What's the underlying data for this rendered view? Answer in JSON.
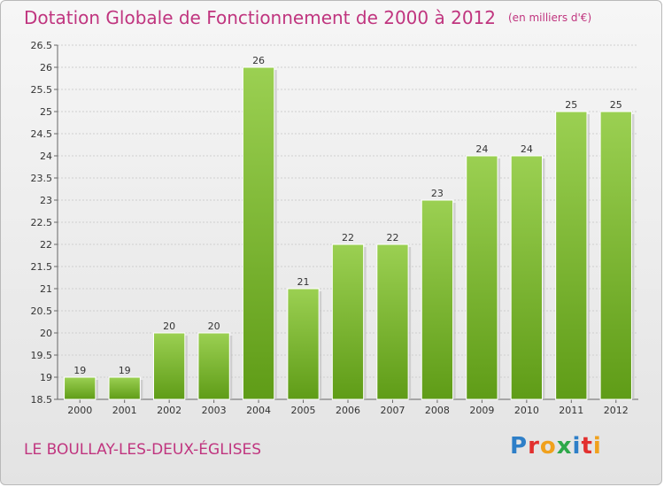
{
  "title": "Dotation Globale de Fonctionnement de 2000 à 2012",
  "unit": "(en milliers d'€)",
  "commune": "LE BOULLAY-LES-DEUX-ÉGLISES",
  "logo": {
    "letters": [
      "P",
      "r",
      "o",
      "x",
      "i",
      "t",
      "i"
    ],
    "colors": [
      "#2e7fc8",
      "#e2302f",
      "#f0a11d",
      "#2ea84a",
      "#2e7fc8",
      "#e2302f",
      "#f0a11d"
    ]
  },
  "chart_data": {
    "type": "bar",
    "categories": [
      "2000",
      "2001",
      "2002",
      "2003",
      "2004",
      "2005",
      "2006",
      "2007",
      "2008",
      "2009",
      "2010",
      "2011",
      "2012"
    ],
    "values": [
      19,
      19,
      20,
      20,
      26,
      21,
      22,
      22,
      23,
      24,
      24,
      25,
      25
    ],
    "ylim": [
      18.5,
      26.5
    ],
    "yticks": [
      "18.5",
      "19",
      "19.5",
      "20",
      "20.5",
      "21",
      "21.5",
      "22",
      "22.5",
      "23",
      "23.5",
      "24",
      "24.5",
      "25",
      "25.5",
      "26",
      "26.5"
    ],
    "grid": true,
    "bar_color": "#7cb82f"
  }
}
